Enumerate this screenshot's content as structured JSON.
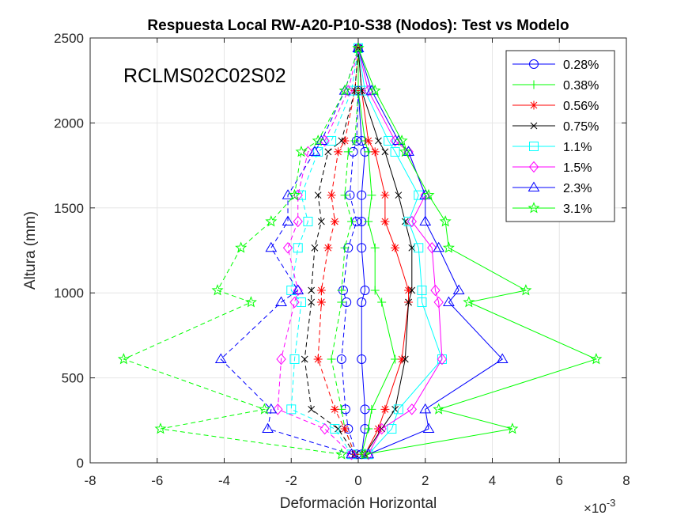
{
  "chart_data": {
    "type": "line",
    "title": "Respuesta Local RW-A20-P10-S38 (Nodos): Test vs Modelo",
    "xlabel": "Deformación Horizontal",
    "ylabel": "Altura (mm)",
    "x_exponent_label": "×10",
    "x_exponent_power": "-3",
    "annotation": "RCLMS02C02S02",
    "xlim": [
      -0.008,
      0.008
    ],
    "ylim": [
      0,
      2500
    ],
    "x_ticks": [
      -8,
      -6,
      -4,
      -2,
      0,
      2,
      4,
      6,
      8
    ],
    "y_ticks": [
      0,
      500,
      1000,
      1500,
      2000,
      2500
    ],
    "grid": true,
    "legend_position": "top-right",
    "heights": [
      50,
      200,
      315,
      610,
      945,
      1015,
      1265,
      1420,
      1575,
      1830,
      1895,
      2190,
      2440
    ],
    "series": [
      {
        "name": "0.28%",
        "color": "#0000ff",
        "marker": "o",
        "left": [
          -5e-05,
          -0.0003,
          -0.00038,
          -0.0005,
          -0.00035,
          -0.00045,
          -0.0003,
          -5e-05,
          -0.00025,
          -0.00015,
          -5e-05,
          0.0,
          0.0
        ],
        "right": [
          0.0001,
          0.0002,
          0.0002,
          0.0001,
          0.0001,
          0.0002,
          0.0001,
          0.0001,
          0.0001,
          0.0002,
          0.0001,
          0.0,
          0.0
        ]
      },
      {
        "name": "0.38%",
        "color": "#00ff00",
        "marker": "+",
        "left": [
          -0.0001,
          -0.0004,
          -0.0005,
          -0.0008,
          -0.0005,
          -0.0005,
          -0.0004,
          -0.0002,
          -0.0004,
          -0.0003,
          -0.0001,
          0.0,
          0.0
        ],
        "right": [
          0.0001,
          0.0003,
          0.0004,
          0.0011,
          0.0007,
          0.0005,
          0.0005,
          0.0003,
          0.0004,
          0.0003,
          0.0002,
          0.0,
          0.0
        ]
      },
      {
        "name": "0.56%",
        "color": "#ff0000",
        "marker": "*",
        "left": [
          -0.0001,
          -0.0004,
          -0.0007,
          -0.0012,
          -0.0011,
          -0.0011,
          -0.0009,
          -0.0007,
          -0.0008,
          -0.0006,
          -0.0004,
          -0.0001,
          0.0
        ],
        "right": [
          0.0002,
          0.0006,
          0.0008,
          0.0013,
          0.0015,
          0.0015,
          0.0011,
          0.0008,
          0.0008,
          0.0005,
          0.0003,
          0.0001,
          0.0
        ]
      },
      {
        "name": "0.75%",
        "color": "#000000",
        "marker": "x",
        "left": [
          -0.0001,
          -0.0006,
          -0.0014,
          -0.0016,
          -0.0014,
          -0.0014,
          -0.0013,
          -0.0011,
          -0.0012,
          -0.0009,
          -0.0005,
          -0.0001,
          0.0
        ],
        "right": [
          0.0002,
          0.0007,
          0.0011,
          0.0014,
          0.0015,
          0.0016,
          0.0016,
          0.0014,
          0.0012,
          0.0008,
          0.0006,
          0.0001,
          0.0
        ]
      },
      {
        "name": "1.1%",
        "color": "#00ffff",
        "marker": "s",
        "left": [
          -0.0002,
          -0.0007,
          -0.002,
          -0.0019,
          -0.0017,
          -0.002,
          -0.0018,
          -0.0015,
          -0.0017,
          -0.0012,
          -0.0008,
          -0.0002,
          0.0
        ],
        "right": [
          0.0003,
          0.001,
          0.0012,
          0.0025,
          0.0019,
          0.0019,
          0.0018,
          0.0015,
          0.0018,
          0.0011,
          0.0009,
          0.0002,
          0.0
        ]
      },
      {
        "name": "1.5%",
        "color": "#ff00ff",
        "marker": "d",
        "left": [
          -0.0002,
          -0.001,
          -0.0024,
          -0.0023,
          -0.0019,
          -0.0018,
          -0.0021,
          -0.0018,
          -0.0018,
          -0.0015,
          -0.001,
          -0.0003,
          0.0
        ],
        "right": [
          0.0003,
          0.0007,
          0.0016,
          0.0025,
          0.0024,
          0.0023,
          0.0022,
          0.0016,
          0.002,
          0.0015,
          0.0011,
          0.0003,
          0.0
        ]
      },
      {
        "name": "2.3%",
        "color": "#0000ff",
        "marker": "^",
        "left": [
          -0.0002,
          -0.0027,
          -0.0026,
          -0.0041,
          -0.0023,
          -0.0018,
          -0.0026,
          -0.0021,
          -0.0021,
          -0.0013,
          -0.0011,
          -0.0004,
          0.0
        ],
        "right": [
          0.0003,
          0.0021,
          0.002,
          0.0043,
          0.0027,
          0.003,
          0.0024,
          0.002,
          0.002,
          0.0015,
          0.0012,
          0.0004,
          0.0
        ]
      },
      {
        "name": "3.1%",
        "color": "#00ff00",
        "marker": "p",
        "left": [
          -0.0005,
          -0.0059,
          -0.0028,
          -0.007,
          -0.0032,
          -0.0042,
          -0.0035,
          -0.0026,
          -0.0019,
          -0.0017,
          -0.0012,
          -0.0004,
          0.0
        ],
        "right": [
          0.0002,
          0.0046,
          0.0024,
          0.0071,
          0.0033,
          0.005,
          0.0027,
          0.0026,
          0.0021,
          0.0014,
          0.0013,
          0.0005,
          0.0
        ]
      }
    ]
  }
}
